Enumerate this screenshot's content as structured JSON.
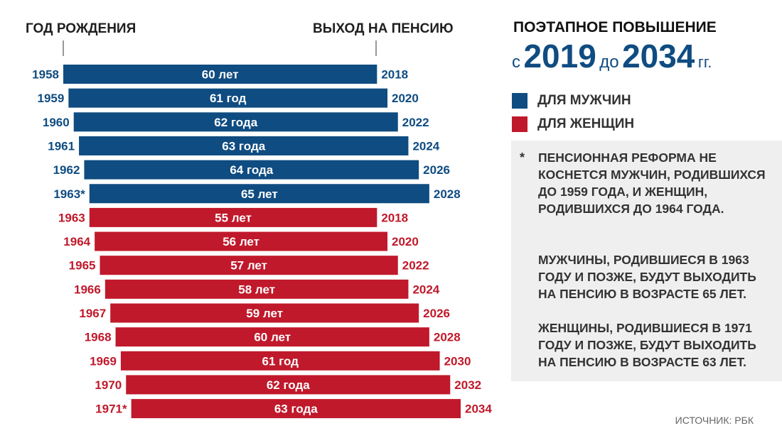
{
  "header": {
    "birth_year_label": "ГОД РОЖДЕНИЯ",
    "retirement_label": "ВЫХОД НА ПЕНСИЮ"
  },
  "title": {
    "line1": "ПОЭТАПНОЕ ПОВЫШЕНИЕ",
    "prefix": "с",
    "year_from": "2019",
    "mid": "до",
    "year_to": "2034",
    "suffix": "гг."
  },
  "legend": {
    "men": "ДЛЯ МУЖЧИН",
    "women": "ДЛЯ ЖЕНЩИН"
  },
  "note": {
    "star": "*",
    "p1": "ПЕНСИОННАЯ РЕФОРМА НЕ КОСНЕТСЯ МУЖЧИН, РОДИВШИХСЯ ДО 1959 ГОДА, И ЖЕНЩИН, РОДИВШИХСЯ ДО 1964 ГОДА.",
    "p2": "МУЖЧИНЫ, РОДИВШИЕСЯ В 1963 ГОДУ И ПОЗЖЕ, БУДУТ ВЫХОДИТЬ НА ПЕНСИЮ В ВОЗРАСТЕ 65 ЛЕТ.",
    "p3": "ЖЕНЩИНЫ, РОДИВШИЕСЯ В 1971 ГОДУ И ПОЗЖЕ, БУДУТ ВЫХОДИТЬ НА ПЕНСИЮ В ВОЗРАСТЕ 63 ЛЕТ."
  },
  "source": "ИСТОЧНИК: РБК",
  "colors": {
    "men": "#0f4c81",
    "women": "#c0192b"
  },
  "chart_data": {
    "type": "bar",
    "title": "ПОЭТАПНОЕ ПОВЫШЕНИЕ с 2019 до 2034 гг.",
    "xlabel": "ГОД РОЖДЕНИЯ",
    "ylabel": "ВЫХОД НА ПЕНСИЮ",
    "xlim": [
      1958,
      2034
    ],
    "series": [
      {
        "name": "ДЛЯ МУЖЧИН",
        "color": "#0f4c81",
        "rows": [
          {
            "birth_label": "1958",
            "birth_year": 1958,
            "retire_year": 2018,
            "age_label": "60 лет"
          },
          {
            "birth_label": "1959",
            "birth_year": 1959,
            "retire_year": 2020,
            "age_label": "61 год"
          },
          {
            "birth_label": "1960",
            "birth_year": 1960,
            "retire_year": 2022,
            "age_label": "62 года"
          },
          {
            "birth_label": "1961",
            "birth_year": 1961,
            "retire_year": 2024,
            "age_label": "63 года"
          },
          {
            "birth_label": "1962",
            "birth_year": 1962,
            "retire_year": 2026,
            "age_label": "64 года"
          },
          {
            "birth_label": "1963*",
            "birth_year": 1963,
            "retire_year": 2028,
            "age_label": "65 лет"
          }
        ]
      },
      {
        "name": "ДЛЯ ЖЕНЩИН",
        "color": "#c0192b",
        "rows": [
          {
            "birth_label": "1963",
            "birth_year": 1963,
            "retire_year": 2018,
            "age_label": "55 лет"
          },
          {
            "birth_label": "1964",
            "birth_year": 1964,
            "retire_year": 2020,
            "age_label": "56 лет"
          },
          {
            "birth_label": "1965",
            "birth_year": 1965,
            "retire_year": 2022,
            "age_label": "57 лет"
          },
          {
            "birth_label": "1966",
            "birth_year": 1966,
            "retire_year": 2024,
            "age_label": "58 лет"
          },
          {
            "birth_label": "1967",
            "birth_year": 1967,
            "retire_year": 2026,
            "age_label": "59 лет"
          },
          {
            "birth_label": "1968",
            "birth_year": 1968,
            "retire_year": 2028,
            "age_label": "60 лет"
          },
          {
            "birth_label": "1969",
            "birth_year": 1969,
            "retire_year": 2030,
            "age_label": "61 год"
          },
          {
            "birth_label": "1970",
            "birth_year": 1970,
            "retire_year": 2032,
            "age_label": "62 года"
          },
          {
            "birth_label": "1971*",
            "birth_year": 1971,
            "retire_year": 2034,
            "age_label": "63 года"
          }
        ]
      }
    ]
  }
}
